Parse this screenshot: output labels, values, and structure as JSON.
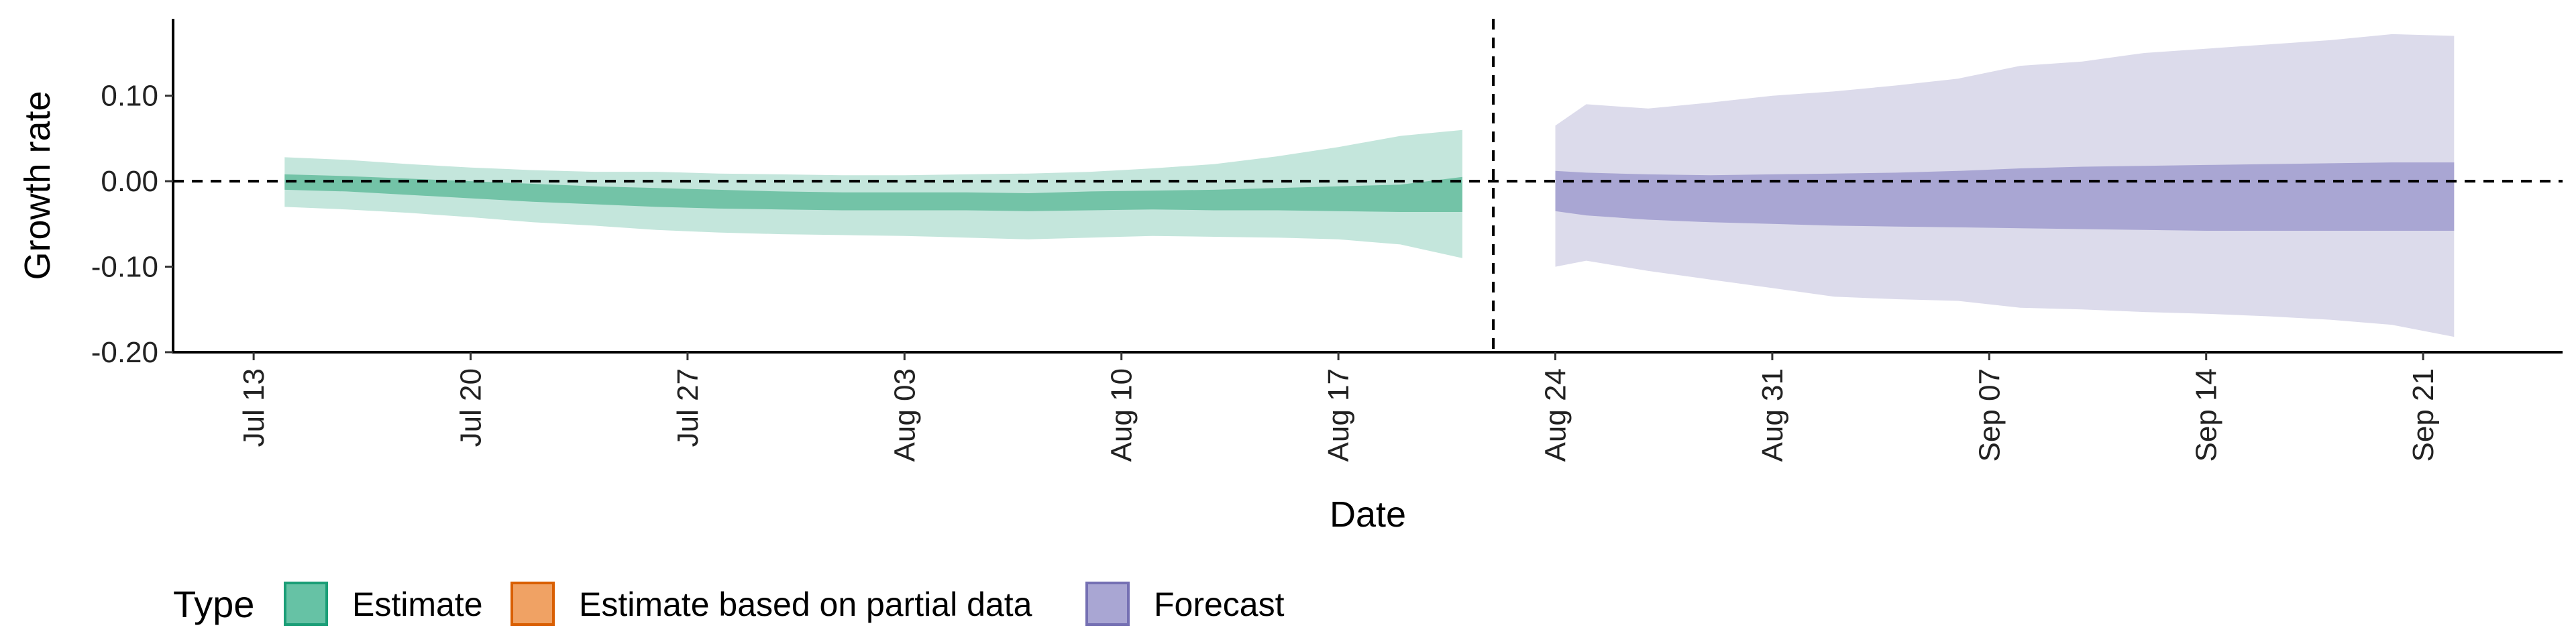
{
  "chart_data": {
    "type": "area",
    "xlabel": "Date",
    "ylabel": "Growth rate",
    "x_ticks": [
      "Jul 13",
      "Jul 20",
      "Jul 27",
      "Aug 03",
      "Aug 10",
      "Aug 17",
      "Aug 24",
      "Aug 31",
      "Sep 07",
      "Sep 14",
      "Sep 21"
    ],
    "y_ticks": [
      "0.10",
      "0.00",
      "-0.10",
      "-0.20"
    ],
    "y_tick_values": [
      0.1,
      0.0,
      -0.1,
      -0.2
    ],
    "ylim": [
      -0.2,
      0.19
    ],
    "xlim_days": [
      -2.6,
      74.5
    ],
    "x_ticks_days": [
      0,
      7,
      14,
      21,
      28,
      35,
      42,
      49,
      56,
      63,
      70
    ],
    "hline_y": 0.0,
    "vline_day": 40,
    "legend": {
      "title": "Type",
      "position": "bottom",
      "items": [
        {
          "label": "Estimate",
          "fill": "#66c2a5",
          "border": "#1b9e77"
        },
        {
          "label": "Estimate based on partial data",
          "fill": "#f0a264",
          "border": "#d95f02"
        },
        {
          "label": "Forecast",
          "fill": "#a9a6d3",
          "border": "#7570b3"
        }
      ]
    },
    "series": [
      {
        "name": "Estimate",
        "outer_color": "#c4e6dc",
        "inner_color": "#73c3a7",
        "days": [
          1,
          3,
          5,
          7,
          9,
          11,
          13,
          15,
          17,
          19,
          21,
          23,
          25,
          27,
          29,
          31,
          33,
          35,
          37,
          39
        ],
        "lower90": [
          -0.03,
          -0.033,
          -0.037,
          -0.042,
          -0.048,
          -0.052,
          -0.057,
          -0.06,
          -0.062,
          -0.063,
          -0.064,
          -0.066,
          -0.068,
          -0.066,
          -0.064,
          -0.065,
          -0.066,
          -0.068,
          -0.074,
          -0.09
        ],
        "upper90": [
          0.028,
          0.025,
          0.02,
          0.016,
          0.013,
          0.011,
          0.011,
          0.009,
          0.008,
          0.007,
          0.007,
          0.008,
          0.009,
          0.011,
          0.015,
          0.02,
          0.029,
          0.04,
          0.053,
          0.06
        ],
        "lower50": [
          -0.01,
          -0.012,
          -0.016,
          -0.02,
          -0.024,
          -0.027,
          -0.03,
          -0.032,
          -0.033,
          -0.034,
          -0.034,
          -0.034,
          -0.035,
          -0.034,
          -0.033,
          -0.034,
          -0.034,
          -0.035,
          -0.036,
          -0.036
        ],
        "upper50": [
          0.008,
          0.006,
          0.003,
          0.0,
          -0.003,
          -0.006,
          -0.008,
          -0.01,
          -0.012,
          -0.013,
          -0.013,
          -0.013,
          -0.014,
          -0.012,
          -0.011,
          -0.01,
          -0.008,
          -0.006,
          -0.004,
          0.005
        ]
      },
      {
        "name": "Forecast",
        "outer_color": "#dcdbeb",
        "inner_color": "#a9a6d3",
        "days": [
          42,
          43,
          45,
          47,
          49,
          51,
          53,
          55,
          57,
          59,
          61,
          63,
          65,
          67,
          69,
          71
        ],
        "lower90": [
          -0.1,
          -0.093,
          -0.105,
          -0.115,
          -0.125,
          -0.135,
          -0.138,
          -0.14,
          -0.148,
          -0.15,
          -0.153,
          -0.155,
          -0.158,
          -0.162,
          -0.168,
          -0.182
        ],
        "upper90": [
          0.065,
          0.09,
          0.085,
          0.092,
          0.1,
          0.105,
          0.112,
          0.12,
          0.135,
          0.14,
          0.15,
          0.155,
          0.16,
          0.165,
          0.172,
          0.17
        ],
        "lower50": [
          -0.035,
          -0.04,
          -0.045,
          -0.048,
          -0.05,
          -0.052,
          -0.053,
          -0.054,
          -0.055,
          -0.056,
          -0.057,
          -0.058,
          -0.058,
          -0.058,
          -0.058,
          -0.058
        ],
        "upper50": [
          0.012,
          0.01,
          0.008,
          0.007,
          0.008,
          0.009,
          0.01,
          0.012,
          0.015,
          0.017,
          0.018,
          0.019,
          0.02,
          0.021,
          0.022,
          0.022
        ]
      }
    ]
  }
}
